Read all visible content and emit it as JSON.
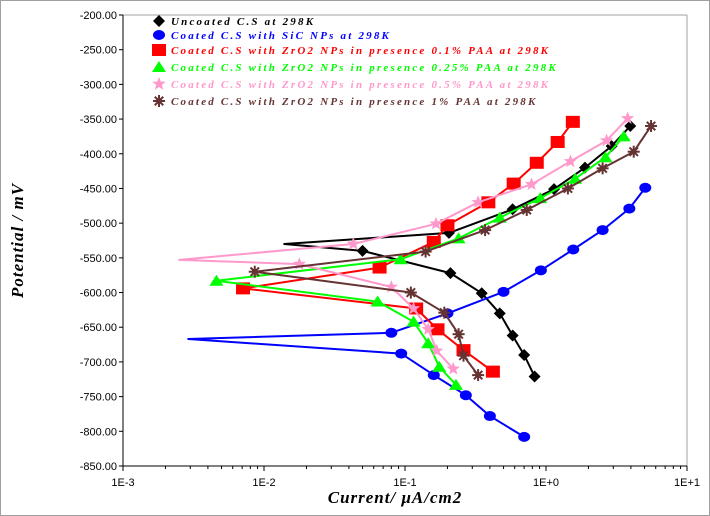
{
  "chart_data": {
    "type": "line",
    "title": "",
    "xlabel": "Current/ μA/cm2",
    "ylabel": "Potential / mV",
    "xscale": "log",
    "xlim": [
      0.001,
      10
    ],
    "ylim": [
      -850,
      -200
    ],
    "xticks": [
      "1E-3",
      "1E-2",
      "1E-1",
      "1E+0",
      "1E+1"
    ],
    "xtick_values": [
      0.001,
      0.01,
      0.1,
      1,
      10
    ],
    "yticks": [
      "-200.00",
      "-250.00",
      "-300.00",
      "-350.00",
      "-400.00",
      "-450.00",
      "-500.00",
      "-550.00",
      "-600.00",
      "-650.00",
      "-700.00",
      "-750.00",
      "-800.00",
      "-850.00"
    ],
    "ytick_values": [
      -200,
      -250,
      -300,
      -350,
      -400,
      -450,
      -500,
      -550,
      -600,
      -650,
      -700,
      -750,
      -800,
      -850
    ],
    "grid": false,
    "legend_position": "top-left",
    "series": [
      {
        "name": "Uncoated C.S at 298K",
        "color": "#000000",
        "marker": "diamond",
        "unmarked": [
          7
        ],
        "points": [
          [
            0.83,
            -721
          ],
          [
            0.7,
            -690
          ],
          [
            0.58,
            -662
          ],
          [
            0.47,
            -630
          ],
          [
            0.35,
            -601
          ],
          [
            0.21,
            -572
          ],
          [
            0.05,
            -540
          ],
          [
            0.0139,
            -530
          ],
          [
            0.205,
            -514
          ],
          [
            0.58,
            -480
          ],
          [
            1.14,
            -451
          ],
          [
            1.89,
            -420
          ],
          [
            2.92,
            -389
          ],
          [
            3.96,
            -360
          ]
        ]
      },
      {
        "name": "Coated C.S with SiC NPs at 298K",
        "color": "#0000ff",
        "marker": "circle",
        "unmarked": [
          5
        ],
        "points": [
          [
            0.7,
            -808
          ],
          [
            0.4,
            -778
          ],
          [
            0.27,
            -748
          ],
          [
            0.16,
            -719
          ],
          [
            0.094,
            -688
          ],
          [
            0.0029,
            -667
          ],
          [
            0.08,
            -658
          ],
          [
            0.2,
            -630
          ],
          [
            0.5,
            -599
          ],
          [
            0.92,
            -568
          ],
          [
            1.56,
            -538
          ],
          [
            2.52,
            -510
          ],
          [
            3.9,
            -479
          ],
          [
            5.06,
            -449
          ]
        ]
      },
      {
        "name": "Coated C.S with ZrO2 NPs in presence 0.1% PAA at 298K",
        "color": "#ff0000",
        "marker": "square",
        "unmarked": [],
        "points": [
          [
            0.42,
            -714
          ],
          [
            0.26,
            -683
          ],
          [
            0.17,
            -653
          ],
          [
            0.12,
            -623
          ],
          [
            0.0071,
            -594
          ],
          [
            0.066,
            -564
          ],
          [
            0.16,
            -527
          ],
          [
            0.2,
            -503
          ],
          [
            0.39,
            -470
          ],
          [
            0.59,
            -443
          ],
          [
            0.86,
            -413
          ],
          [
            1.21,
            -383
          ],
          [
            1.55,
            -354
          ]
        ]
      },
      {
        "name": "Coated C.S with ZrO2 NPs in presence 0.25% PAA at 298K",
        "color": "#00ff00",
        "marker": "triangle",
        "unmarked": [],
        "points": [
          [
            0.23,
            -733
          ],
          [
            0.175,
            -707
          ],
          [
            0.146,
            -673
          ],
          [
            0.115,
            -642
          ],
          [
            0.064,
            -613
          ],
          [
            0.0046,
            -583
          ],
          [
            0.093,
            -552
          ],
          [
            0.24,
            -522
          ],
          [
            0.47,
            -492
          ],
          [
            0.91,
            -464
          ],
          [
            1.61,
            -436
          ],
          [
            2.64,
            -405
          ],
          [
            3.56,
            -375
          ]
        ]
      },
      {
        "name": "Coated C.S with ZrO2 NPs in presence 0.5% PAA at 298K",
        "color": "#ff99cc",
        "marker": "star",
        "unmarked": [
          6
        ],
        "points": [
          [
            0.22,
            -710
          ],
          [
            0.168,
            -684
          ],
          [
            0.146,
            -653
          ],
          [
            0.115,
            -623
          ],
          [
            0.08,
            -592
          ],
          [
            0.0178,
            -559
          ],
          [
            0.0025,
            -553
          ],
          [
            0.043,
            -530
          ],
          [
            0.166,
            -501
          ],
          [
            0.33,
            -470
          ],
          [
            0.79,
            -444
          ],
          [
            1.49,
            -411
          ],
          [
            2.69,
            -381
          ],
          [
            3.79,
            -349
          ]
        ]
      },
      {
        "name": "Coated C.S with ZrO2 NPs in presence 1% PAA at 298K",
        "color": "#663333",
        "marker": "asterisk",
        "unmarked": [],
        "points": [
          [
            0.33,
            -719
          ],
          [
            0.26,
            -691
          ],
          [
            0.24,
            -660
          ],
          [
            0.19,
            -629
          ],
          [
            0.11,
            -600
          ],
          [
            0.0086,
            -570
          ],
          [
            0.14,
            -541
          ],
          [
            0.37,
            -510
          ],
          [
            0.73,
            -481
          ],
          [
            1.43,
            -450
          ],
          [
            2.52,
            -421
          ],
          [
            4.19,
            -397
          ],
          [
            5.56,
            -360
          ]
        ]
      }
    ]
  }
}
